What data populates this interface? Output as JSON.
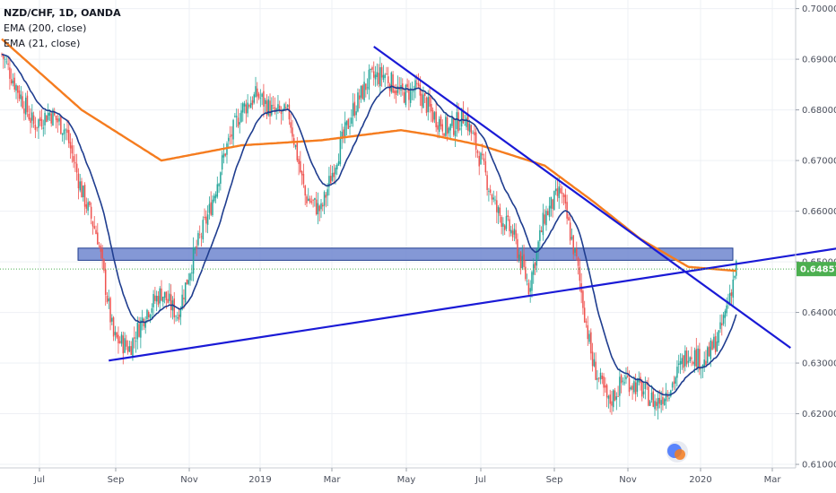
{
  "legend": {
    "title": "NZD/CHF, 1D, OANDA",
    "ema200": "EMA (200, close)",
    "ema21": "EMA (21, close)"
  },
  "colors": {
    "up": "#26a69a",
    "down": "#ef5350",
    "ema200": "#f57c1f",
    "ema21": "#1f3d8f",
    "trendline": "#1a1ad6",
    "zone_fill": "#6f86cf",
    "zone_stroke": "#1f3d8f",
    "price_tag": "#4caf50",
    "grid": "#eef0f4"
  },
  "chart_data": {
    "type": "candlestick",
    "symbol": "NZD/CHF",
    "interval": "1D",
    "source": "OANDA",
    "y_ticks": [
      "0.70000",
      "0.69000",
      "0.68000",
      "0.67000",
      "0.66000",
      "0.65000",
      "0.64000",
      "0.63000",
      "0.62000",
      "0.61000"
    ],
    "y_range": [
      0.6093,
      0.7017
    ],
    "last_price": "0.64857",
    "x_labels": [
      "Jul",
      "Sep",
      "Nov",
      "2019",
      "Mar",
      "May",
      "Jul",
      "Sep",
      "Nov",
      "2020",
      "Mar"
    ],
    "close_anchors": [
      [
        0,
        0.691
      ],
      [
        10,
        0.684
      ],
      [
        20,
        0.677
      ],
      [
        30,
        0.6795
      ],
      [
        40,
        0.676
      ],
      [
        50,
        0.664
      ],
      [
        60,
        0.655
      ],
      [
        70,
        0.635
      ],
      [
        80,
        0.633
      ],
      [
        90,
        0.64
      ],
      [
        100,
        0.644
      ],
      [
        110,
        0.6395
      ],
      [
        120,
        0.651
      ],
      [
        130,
        0.66
      ],
      [
        140,
        0.672
      ],
      [
        150,
        0.68
      ],
      [
        160,
        0.683
      ],
      [
        170,
        0.6795
      ],
      [
        180,
        0.679
      ],
      [
        190,
        0.663
      ],
      [
        200,
        0.66
      ],
      [
        210,
        0.671
      ],
      [
        220,
        0.68
      ],
      [
        230,
        0.686
      ],
      [
        240,
        0.687
      ],
      [
        250,
        0.683
      ],
      [
        260,
        0.684
      ],
      [
        270,
        0.679
      ],
      [
        280,
        0.676
      ],
      [
        290,
        0.679
      ],
      [
        300,
        0.67
      ],
      [
        310,
        0.66
      ],
      [
        320,
        0.6555
      ],
      [
        330,
        0.645
      ],
      [
        340,
        0.659
      ],
      [
        350,
        0.664
      ],
      [
        360,
        0.65
      ],
      [
        370,
        0.63
      ],
      [
        380,
        0.622
      ],
      [
        390,
        0.627
      ],
      [
        400,
        0.625
      ],
      [
        410,
        0.622
      ],
      [
        420,
        0.626
      ],
      [
        430,
        0.6325
      ],
      [
        440,
        0.63
      ],
      [
        450,
        0.636
      ],
      [
        460,
        0.649
      ]
    ],
    "ema200_anchors": [
      [
        0,
        0.694
      ],
      [
        50,
        0.68
      ],
      [
        100,
        0.67
      ],
      [
        150,
        0.673
      ],
      [
        200,
        0.674
      ],
      [
        250,
        0.676
      ],
      [
        270,
        0.675
      ],
      [
        300,
        0.673
      ],
      [
        340,
        0.669
      ],
      [
        370,
        0.662
      ],
      [
        400,
        0.6545
      ],
      [
        430,
        0.649
      ],
      [
        460,
        0.6482
      ]
    ],
    "resistance_zone": [
      0.6503,
      0.6527
    ],
    "trendlines": [
      {
        "name": "support",
        "from": [
          67,
          0.6305
        ],
        "to": [
          545,
          0.6537
        ]
      },
      {
        "name": "downtrend",
        "from": [
          233,
          0.6925
        ],
        "to": [
          494,
          0.633
        ]
      }
    ]
  }
}
